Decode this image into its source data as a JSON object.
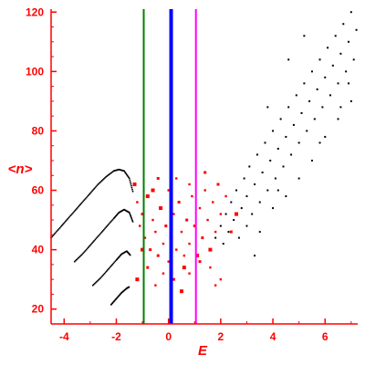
{
  "chart_data": {
    "type": "scatter",
    "title": "",
    "xlabel": "E",
    "ylabel": "<n>",
    "xlim": [
      -4.5,
      7.25
    ],
    "ylim": [
      15,
      121
    ],
    "x_ticks": [
      "-4",
      "-2",
      "0",
      "2",
      "4",
      "6"
    ],
    "x_tick_values": [
      -4,
      -2,
      0,
      2,
      4,
      6
    ],
    "y_ticks": [
      "20",
      "40",
      "60",
      "80",
      "100",
      "120"
    ],
    "y_tick_values": [
      20,
      40,
      60,
      80,
      100,
      120
    ],
    "grid": false,
    "legend": "none",
    "colors": {
      "axis": "#ff0000",
      "black_points": "#000000",
      "red_points": "#ff0000",
      "line_green": "#008000",
      "line_blue": "#0000ff",
      "line_magenta": "#ff00ff"
    },
    "vertical_lines": [
      {
        "x": -0.95,
        "color": "#008000"
      },
      {
        "x": 0.1,
        "color": "#0000ff"
      },
      {
        "x": 1.05,
        "color": "#ff00ff"
      }
    ],
    "curves": [
      {
        "color": "#000000",
        "x": [
          -4.5,
          -4.2,
          -3.9,
          -3.6,
          -3.3,
          -3.0,
          -2.7,
          -2.4,
          -2.1,
          -1.9,
          -1.7,
          -1.5,
          -1.35
        ],
        "y": [
          44,
          47,
          50,
          53,
          56,
          59,
          62,
          64.5,
          66.5,
          67,
          66.5,
          64,
          59
        ]
      },
      {
        "color": "#000000",
        "x": [
          -3.6,
          -3.3,
          -3.0,
          -2.7,
          -2.4,
          -2.1,
          -1.9,
          -1.7,
          -1.5,
          -1.35
        ],
        "y": [
          36,
          38.5,
          41.5,
          44.5,
          47.5,
          50.5,
          52.5,
          53.5,
          52.5,
          49
        ]
      },
      {
        "color": "#000000",
        "x": [
          -2.9,
          -2.6,
          -2.3,
          -2.0,
          -1.8,
          -1.6,
          -1.45
        ],
        "y": [
          28,
          30.5,
          33.5,
          36.5,
          38.5,
          39.5,
          38
        ]
      },
      {
        "color": "#000000",
        "x": [
          -2.2,
          -2.0,
          -1.8,
          -1.6,
          -1.5
        ],
        "y": [
          21.5,
          23.5,
          25.5,
          27,
          27.5
        ]
      }
    ],
    "black_scatter": [
      [
        1.6,
        40
      ],
      [
        1.8,
        44
      ],
      [
        2.0,
        48
      ],
      [
        2.1,
        42
      ],
      [
        2.2,
        52
      ],
      [
        2.3,
        46
      ],
      [
        2.4,
        56
      ],
      [
        2.5,
        50
      ],
      [
        2.6,
        60
      ],
      [
        2.7,
        44
      ],
      [
        2.8,
        54
      ],
      [
        2.9,
        64
      ],
      [
        3.0,
        48
      ],
      [
        3.0,
        58
      ],
      [
        3.1,
        68
      ],
      [
        3.2,
        52
      ],
      [
        3.3,
        62
      ],
      [
        3.4,
        72
      ],
      [
        3.5,
        56
      ],
      [
        3.5,
        46
      ],
      [
        3.6,
        66
      ],
      [
        3.7,
        76
      ],
      [
        3.8,
        60
      ],
      [
        3.9,
        70
      ],
      [
        4.0,
        80
      ],
      [
        4.0,
        54
      ],
      [
        4.1,
        64
      ],
      [
        4.2,
        74
      ],
      [
        4.3,
        84
      ],
      [
        4.4,
        68
      ],
      [
        4.5,
        78
      ],
      [
        4.5,
        58
      ],
      [
        4.6,
        88
      ],
      [
        4.7,
        72
      ],
      [
        4.8,
        82
      ],
      [
        4.9,
        92
      ],
      [
        5.0,
        76
      ],
      [
        5.0,
        64
      ],
      [
        5.1,
        86
      ],
      [
        5.2,
        96
      ],
      [
        5.3,
        80
      ],
      [
        5.4,
        90
      ],
      [
        5.5,
        100
      ],
      [
        5.5,
        70
      ],
      [
        5.6,
        84
      ],
      [
        5.7,
        94
      ],
      [
        5.8,
        104
      ],
      [
        5.9,
        88
      ],
      [
        6.0,
        98
      ],
      [
        6.0,
        78
      ],
      [
        6.1,
        108
      ],
      [
        6.2,
        92
      ],
      [
        6.3,
        102
      ],
      [
        6.4,
        112
      ],
      [
        6.5,
        96
      ],
      [
        6.5,
        84
      ],
      [
        6.6,
        106
      ],
      [
        6.7,
        116
      ],
      [
        6.8,
        100
      ],
      [
        6.9,
        110
      ],
      [
        7.0,
        120
      ],
      [
        7.0,
        90
      ],
      [
        7.1,
        104
      ],
      [
        7.2,
        114
      ],
      [
        3.8,
        88
      ],
      [
        4.6,
        104
      ],
      [
        5.2,
        112
      ],
      [
        4.2,
        60
      ],
      [
        5.8,
        76
      ],
      [
        6.6,
        88
      ],
      [
        6.9,
        96
      ],
      [
        3.3,
        38
      ]
    ],
    "red_scatter": [
      [
        -1.3,
        62
      ],
      [
        -1.2,
        56
      ],
      [
        -1.1,
        48
      ],
      [
        -1.0,
        52
      ],
      [
        -0.9,
        44
      ],
      [
        -0.8,
        58
      ],
      [
        -0.7,
        40
      ],
      [
        -0.6,
        50
      ],
      [
        -0.5,
        46
      ],
      [
        -0.4,
        38
      ],
      [
        -0.3,
        54
      ],
      [
        -0.2,
        42
      ],
      [
        -0.1,
        48
      ],
      [
        0.0,
        60
      ],
      [
        0.0,
        36
      ],
      [
        0.1,
        44
      ],
      [
        0.2,
        52
      ],
      [
        0.3,
        40
      ],
      [
        0.4,
        56
      ],
      [
        0.5,
        46
      ],
      [
        0.6,
        34
      ],
      [
        0.7,
        50
      ],
      [
        0.8,
        42
      ],
      [
        0.9,
        58
      ],
      [
        1.0,
        48
      ],
      [
        1.1,
        38
      ],
      [
        1.2,
        54
      ],
      [
        1.3,
        44
      ],
      [
        1.4,
        60
      ],
      [
        1.5,
        50
      ],
      [
        1.6,
        40
      ],
      [
        1.7,
        56
      ],
      [
        1.8,
        46
      ],
      [
        1.9,
        62
      ],
      [
        2.0,
        52
      ],
      [
        -1.2,
        30
      ],
      [
        -0.8,
        34
      ],
      [
        -0.5,
        28
      ],
      [
        -0.2,
        32
      ],
      [
        0.2,
        30
      ],
      [
        0.5,
        26
      ],
      [
        0.8,
        32
      ],
      [
        1.2,
        36
      ],
      [
        1.6,
        34
      ],
      [
        2.0,
        30
      ],
      [
        -0.6,
        60
      ],
      [
        0.3,
        64
      ],
      [
        0.8,
        62
      ],
      [
        1.4,
        66
      ],
      [
        2.2,
        58
      ],
      [
        -1.0,
        40
      ],
      [
        -0.4,
        64
      ],
      [
        0.6,
        38
      ],
      [
        1.8,
        28
      ],
      [
        2.4,
        46
      ],
      [
        2.6,
        52
      ]
    ]
  }
}
